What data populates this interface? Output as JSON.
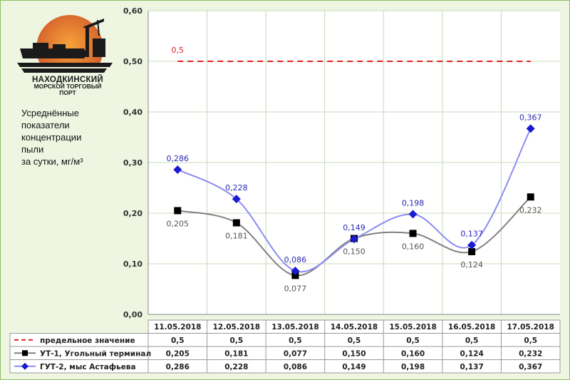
{
  "logo": {
    "line1": "НАХОДКИНСКИЙ",
    "line2": "МОРСКОЙ ТОРГОВЫЙ",
    "line3": "ПОРТ"
  },
  "description": "Усреднённые\nпоказатели\nконцентрации\nпыли\nза сутки, мг/м³",
  "colors": {
    "limit": "#e02020",
    "ut1": "#808080",
    "gut2": "#8c8cf0",
    "gut2_marker": "#1a1ad0",
    "ut1_marker": "#000000",
    "grid": "#c8d8b8",
    "table_border": "#999999"
  },
  "chart_data": {
    "type": "line",
    "categories": [
      "11.05.2018",
      "12.05.2018",
      "13.05.2018",
      "14.05.2018",
      "15.05.2018",
      "16.05.2018",
      "17.05.2018"
    ],
    "ylim": [
      0,
      0.6
    ],
    "yticks": [
      "0,00",
      "0,10",
      "0,20",
      "0,30",
      "0,40",
      "0,50",
      "0,60"
    ],
    "ytick_values": [
      0,
      0.1,
      0.2,
      0.3,
      0.4,
      0.5,
      0.6
    ],
    "grid": true,
    "legend": "table-bottom",
    "series": [
      {
        "name": "предельное значение",
        "values": [
          0.5,
          0.5,
          0.5,
          0.5,
          0.5,
          0.5,
          0.5
        ],
        "labels": [
          "0,5",
          "0,5",
          "0,5",
          "0,5",
          "0,5",
          "0,5",
          "0,5"
        ],
        "style": "dashed",
        "point_label": "0,5"
      },
      {
        "name": "УТ-1, Угольный терминал",
        "values": [
          0.205,
          0.181,
          0.077,
          0.15,
          0.16,
          0.124,
          0.232
        ],
        "labels": [
          "0,205",
          "0,181",
          "0,077",
          "0,150",
          "0,160",
          "0,124",
          "0,232"
        ],
        "marker": "square"
      },
      {
        "name": "ГУТ-2, мыс Астафьева",
        "values": [
          0.286,
          0.228,
          0.086,
          0.149,
          0.198,
          0.137,
          0.367
        ],
        "labels": [
          "0,286",
          "0,228",
          "0,086",
          "0,149",
          "0,198",
          "0,137",
          "0,367"
        ],
        "marker": "diamond"
      }
    ]
  }
}
